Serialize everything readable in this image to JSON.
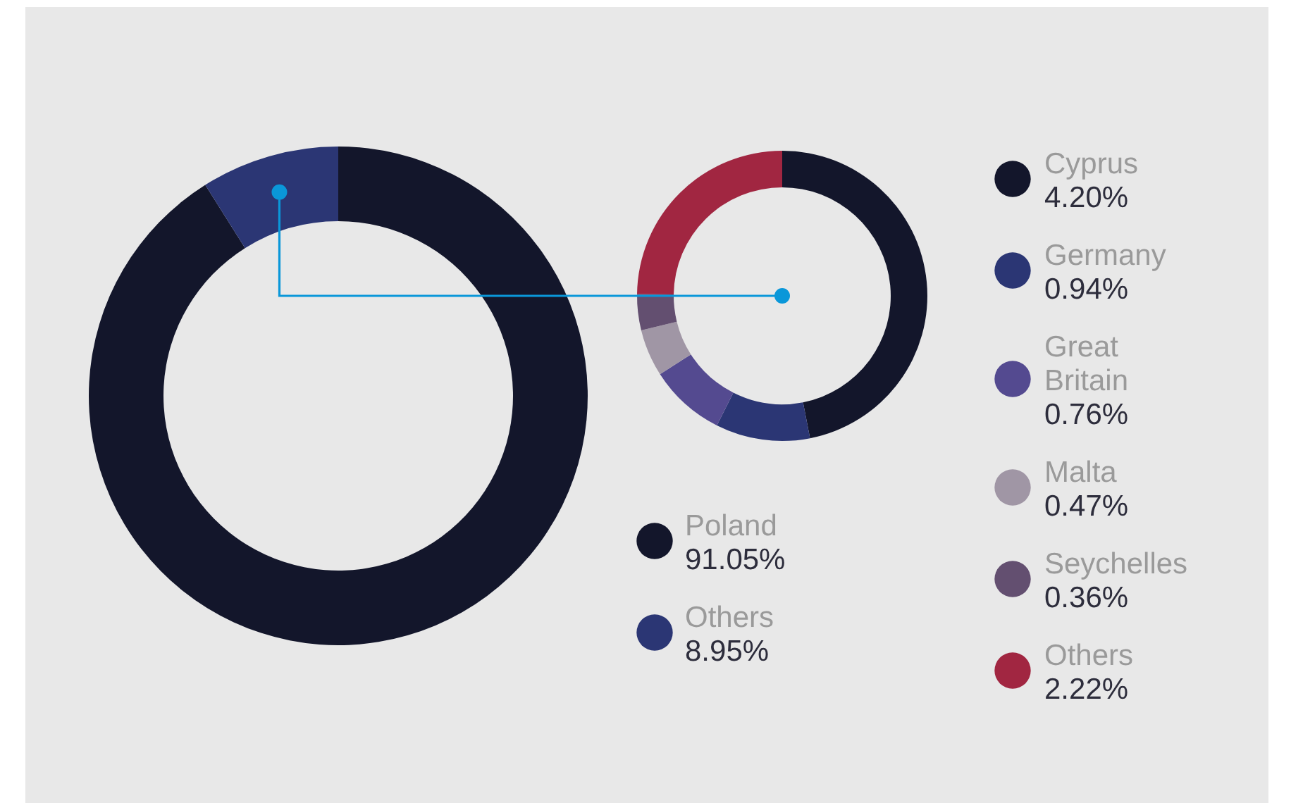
{
  "chart_data": [
    {
      "type": "donut",
      "categories": [
        "Poland",
        "Others"
      ],
      "values": [
        91.05,
        8.95
      ],
      "colors": [
        "#13162b",
        "#2b3674"
      ],
      "value_labels": [
        "91.05%",
        "8.95%"
      ],
      "legend": "bottom right"
    },
    {
      "type": "donut",
      "categories": [
        "Cyprus",
        "Germany",
        "Great Britain",
        "Malta",
        "Seychelles",
        "Others"
      ],
      "values": [
        4.2,
        0.94,
        0.76,
        0.47,
        0.36,
        2.22
      ],
      "colors": [
        "#13162b",
        "#2b3674",
        "#544a90",
        "#a096a5",
        "#634f70",
        "#a12641"
      ],
      "value_labels": [
        "4.20%",
        "0.94%",
        "0.76%",
        "0.47%",
        "0.36%",
        "2.22%"
      ],
      "legend": "right"
    }
  ]
}
